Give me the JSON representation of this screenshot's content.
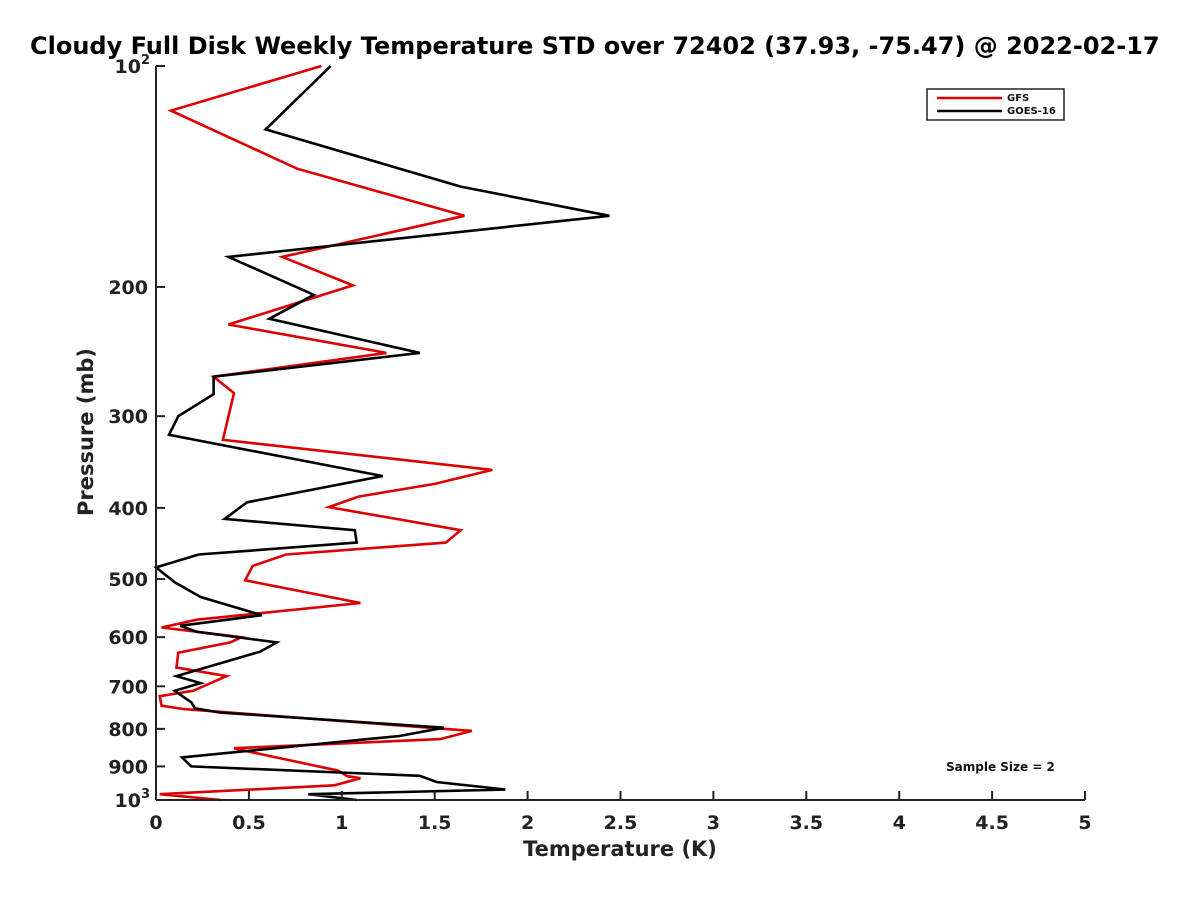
{
  "chart_data": {
    "type": "line",
    "title": "Cloudy Full Disk Weekly Temperature STD over 72402 (37.93, -75.47) @ 2022-02-17",
    "xlabel": "Temperature (K)",
    "ylabel": "Pressure (mb)",
    "xlim": [
      0,
      5
    ],
    "ylim": [
      100,
      1000
    ],
    "y_scale": "log",
    "y_reversed": true,
    "grid": false,
    "legend_position": "top-right",
    "x_ticks": [
      {
        "value": 0,
        "label": "0"
      },
      {
        "value": 0.5,
        "label": "0.5"
      },
      {
        "value": 1,
        "label": "1"
      },
      {
        "value": 1.5,
        "label": "1.5"
      },
      {
        "value": 2,
        "label": "2"
      },
      {
        "value": 2.5,
        "label": "2.5"
      },
      {
        "value": 3,
        "label": "3"
      },
      {
        "value": 3.5,
        "label": "3.5"
      },
      {
        "value": 4,
        "label": "4"
      },
      {
        "value": 4.5,
        "label": "4.5"
      },
      {
        "value": 5,
        "label": "5"
      }
    ],
    "y_ticks": [
      {
        "value": 100,
        "label": "10",
        "sup": "2"
      },
      {
        "value": 200,
        "label": "200"
      },
      {
        "value": 300,
        "label": "300"
      },
      {
        "value": 400,
        "label": "400"
      },
      {
        "value": 500,
        "label": "500"
      },
      {
        "value": 600,
        "label": "600"
      },
      {
        "value": 700,
        "label": "700"
      },
      {
        "value": 800,
        "label": "800"
      },
      {
        "value": 900,
        "label": "900"
      },
      {
        "value": 1000,
        "label": "10",
        "sup": "3"
      }
    ],
    "annotation": "Sample Size = 2",
    "series": [
      {
        "name": "GFS",
        "color": "#dd0000",
        "points": [
          [
            0.89,
            100
          ],
          [
            0.08,
            115
          ],
          [
            0.76,
            138
          ],
          [
            1.66,
            160
          ],
          [
            0.68,
            182
          ],
          [
            1.06,
            199
          ],
          [
            0.39,
            225
          ],
          [
            1.24,
            246
          ],
          [
            0.31,
            265
          ],
          [
            0.42,
            279
          ],
          [
            0.39,
            300
          ],
          [
            0.36,
            323
          ],
          [
            1.81,
            355
          ],
          [
            1.5,
            371
          ],
          [
            1.09,
            386
          ],
          [
            0.93,
            399
          ],
          [
            1.64,
            429
          ],
          [
            1.56,
            446
          ],
          [
            0.7,
            463
          ],
          [
            0.52,
            480
          ],
          [
            0.48,
            502
          ],
          [
            1.1,
            539
          ],
          [
            0.22,
            568
          ],
          [
            0.03,
            582
          ],
          [
            0.46,
            600
          ],
          [
            0.4,
            610
          ],
          [
            0.12,
            630
          ],
          [
            0.11,
            660
          ],
          [
            0.38,
            678
          ],
          [
            0.2,
            710
          ],
          [
            0.02,
            722
          ],
          [
            0.03,
            744
          ],
          [
            0.15,
            752
          ],
          [
            1.7,
            805
          ],
          [
            1.53,
            826
          ],
          [
            0.42,
            850
          ],
          [
            0.48,
            857
          ],
          [
            0.98,
            912
          ],
          [
            1.03,
            928
          ],
          [
            1.1,
            934
          ],
          [
            0.96,
            955
          ],
          [
            0.02,
            982
          ],
          [
            0.35,
            1000
          ]
        ]
      },
      {
        "name": "GOES-16",
        "color": "#000000",
        "points": [
          [
            0.94,
            100
          ],
          [
            0.59,
            122
          ],
          [
            1.64,
            146
          ],
          [
            2.44,
            160
          ],
          [
            0.39,
            182
          ],
          [
            0.85,
            205
          ],
          [
            0.61,
            221
          ],
          [
            1.42,
            246
          ],
          [
            0.31,
            265
          ],
          [
            0.31,
            280
          ],
          [
            0.12,
            300
          ],
          [
            0.07,
            318
          ],
          [
            1.22,
            362
          ],
          [
            0.49,
            393
          ],
          [
            0.37,
            414
          ],
          [
            1.07,
            429
          ],
          [
            1.08,
            446
          ],
          [
            0.23,
            463
          ],
          [
            0.0,
            482
          ],
          [
            0.1,
            505
          ],
          [
            0.24,
            529
          ],
          [
            0.57,
            560
          ],
          [
            0.13,
            579
          ],
          [
            0.22,
            590
          ],
          [
            0.65,
            610
          ],
          [
            0.56,
            628
          ],
          [
            0.11,
            678
          ],
          [
            0.24,
            693
          ],
          [
            0.1,
            710
          ],
          [
            0.19,
            736
          ],
          [
            0.21,
            750
          ],
          [
            0.34,
            760
          ],
          [
            1.55,
            797
          ],
          [
            1.31,
            818
          ],
          [
            0.14,
            875
          ],
          [
            0.19,
            900
          ],
          [
            1.42,
            927
          ],
          [
            1.51,
            945
          ],
          [
            1.88,
            968
          ],
          [
            0.82,
            982
          ],
          [
            1.08,
            1000
          ]
        ]
      }
    ]
  }
}
